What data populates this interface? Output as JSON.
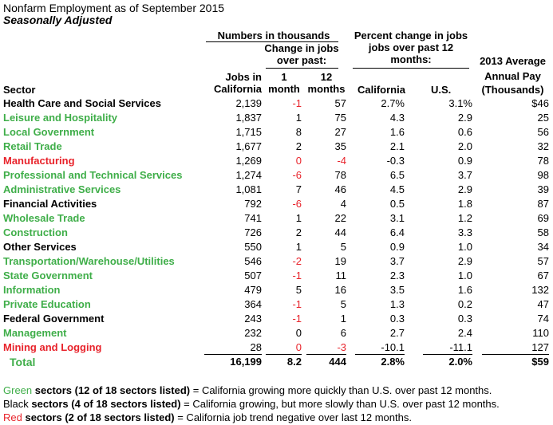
{
  "title": "Nonfarm Employment as of September 2015",
  "subtitle": "Seasonally Adjusted",
  "headers": {
    "group_numbers": "Numbers in thousands",
    "group_change": [
      "Change in jobs",
      "over past:"
    ],
    "group_percent": [
      "Percent change in jobs",
      "jobs over past 12",
      "months:"
    ],
    "avg_pay": [
      "2013 Average",
      "Annual Pay",
      "(Thousands)"
    ],
    "sector": "Sector",
    "jobs": [
      "Jobs in",
      "California"
    ],
    "one_month": [
      "1",
      "month"
    ],
    "twelve_months": [
      "12",
      "months"
    ],
    "california": "California",
    "us": "U.S."
  },
  "colors": {
    "green": "#3fae49",
    "red": "#e8232b",
    "black": "#000000"
  },
  "rows": [
    {
      "sector": "Health Care and Social Services",
      "color": "black",
      "jobs": "2,139",
      "m1": "-1",
      "m1_neg": true,
      "m12": "57",
      "m12_neg": false,
      "ca": "2.7%",
      "us": "3.1%",
      "pay": "$46"
    },
    {
      "sector": "Leisure and Hospitality",
      "color": "green",
      "jobs": "1,837",
      "m1": "1",
      "m1_neg": false,
      "m12": "75",
      "m12_neg": false,
      "ca": "4.3",
      "us": "2.9",
      "pay": "25"
    },
    {
      "sector": "Local Government",
      "color": "green",
      "jobs": "1,715",
      "m1": "8",
      "m1_neg": false,
      "m12": "27",
      "m12_neg": false,
      "ca": "1.6",
      "us": "0.6",
      "pay": "56"
    },
    {
      "sector": "Retail Trade",
      "color": "green",
      "jobs": "1,677",
      "m1": "2",
      "m1_neg": false,
      "m12": "35",
      "m12_neg": false,
      "ca": "2.1",
      "us": "2.0",
      "pay": "32"
    },
    {
      "sector": "Manufacturing",
      "color": "red",
      "jobs": "1,269",
      "m1": "0",
      "m1_neg": true,
      "m12": "-4",
      "m12_neg": true,
      "ca": "-0.3",
      "us": "0.9",
      "pay": "78"
    },
    {
      "sector": "Professional and Technical Services",
      "color": "green",
      "jobs": "1,274",
      "m1": "-6",
      "m1_neg": true,
      "m12": "78",
      "m12_neg": false,
      "ca": "6.5",
      "us": "3.7",
      "pay": "98"
    },
    {
      "sector": "Administrative Services",
      "color": "green",
      "jobs": "1,081",
      "m1": "7",
      "m1_neg": false,
      "m12": "46",
      "m12_neg": false,
      "ca": "4.5",
      "us": "2.9",
      "pay": "39"
    },
    {
      "sector": "Financial Activities",
      "color": "black",
      "jobs": "792",
      "m1": "-6",
      "m1_neg": true,
      "m12": "4",
      "m12_neg": false,
      "ca": "0.5",
      "us": "1.8",
      "pay": "87"
    },
    {
      "sector": "Wholesale Trade",
      "color": "green",
      "jobs": "741",
      "m1": "1",
      "m1_neg": false,
      "m12": "22",
      "m12_neg": false,
      "ca": "3.1",
      "us": "1.2",
      "pay": "69"
    },
    {
      "sector": "Construction",
      "color": "green",
      "jobs": "726",
      "m1": "2",
      "m1_neg": false,
      "m12": "44",
      "m12_neg": false,
      "ca": "6.4",
      "us": "3.3",
      "pay": "58"
    },
    {
      "sector": "Other Services",
      "color": "black",
      "jobs": "550",
      "m1": "1",
      "m1_neg": false,
      "m12": "5",
      "m12_neg": false,
      "ca": "0.9",
      "us": "1.0",
      "pay": "34"
    },
    {
      "sector": "Transportation/Warehouse/Utilities",
      "color": "green",
      "jobs": "546",
      "m1": "-2",
      "m1_neg": true,
      "m12": "19",
      "m12_neg": false,
      "ca": "3.7",
      "us": "2.9",
      "pay": "57"
    },
    {
      "sector": "State Government",
      "color": "green",
      "jobs": "507",
      "m1": "-1",
      "m1_neg": true,
      "m12": "11",
      "m12_neg": false,
      "ca": "2.3",
      "us": "1.0",
      "pay": "67"
    },
    {
      "sector": "Information",
      "color": "green",
      "jobs": "479",
      "m1": "5",
      "m1_neg": false,
      "m12": "16",
      "m12_neg": false,
      "ca": "3.5",
      "us": "1.6",
      "pay": "132"
    },
    {
      "sector": "Private Education",
      "color": "green",
      "jobs": "364",
      "m1": "-1",
      "m1_neg": true,
      "m12": "5",
      "m12_neg": false,
      "ca": "1.3",
      "us": "0.2",
      "pay": "47"
    },
    {
      "sector": "Federal Government",
      "color": "black",
      "jobs": "243",
      "m1": "-1",
      "m1_neg": true,
      "m12": "1",
      "m12_neg": false,
      "ca": "0.3",
      "us": "0.3",
      "pay": "74"
    },
    {
      "sector": "Management",
      "color": "green",
      "jobs": "232",
      "m1": "0",
      "m1_neg": false,
      "m12": "6",
      "m12_neg": false,
      "ca": "2.7",
      "us": "2.4",
      "pay": "110"
    },
    {
      "sector": "Mining and Logging",
      "color": "red",
      "jobs": "28",
      "m1": "0",
      "m1_neg": true,
      "m12": "-3",
      "m12_neg": true,
      "ca": "-10.1",
      "us": "-11.1",
      "pay": "127"
    }
  ],
  "total": {
    "sector": "Total",
    "jobs": "16,199",
    "m1": "8.2",
    "m12": "444",
    "ca": "2.8%",
    "us": "2.0%",
    "pay": "$59"
  },
  "footer": [
    {
      "color": "green",
      "word": "Green",
      "bold": " sectors (12 of 18 sectors listed)",
      "rest": " = California growing more quickly than U.S. over past 12 months."
    },
    {
      "color": "black",
      "word": "Black",
      "bold": " sectors (4 of 18 sectors listed)",
      "rest": " = California growing, but more slowly than U.S. over past 12 months."
    },
    {
      "color": "red",
      "word": "Red",
      "bold": " sectors (2 of 18 sectors listed)",
      "rest": " = California job trend negative over last 12 months."
    }
  ]
}
